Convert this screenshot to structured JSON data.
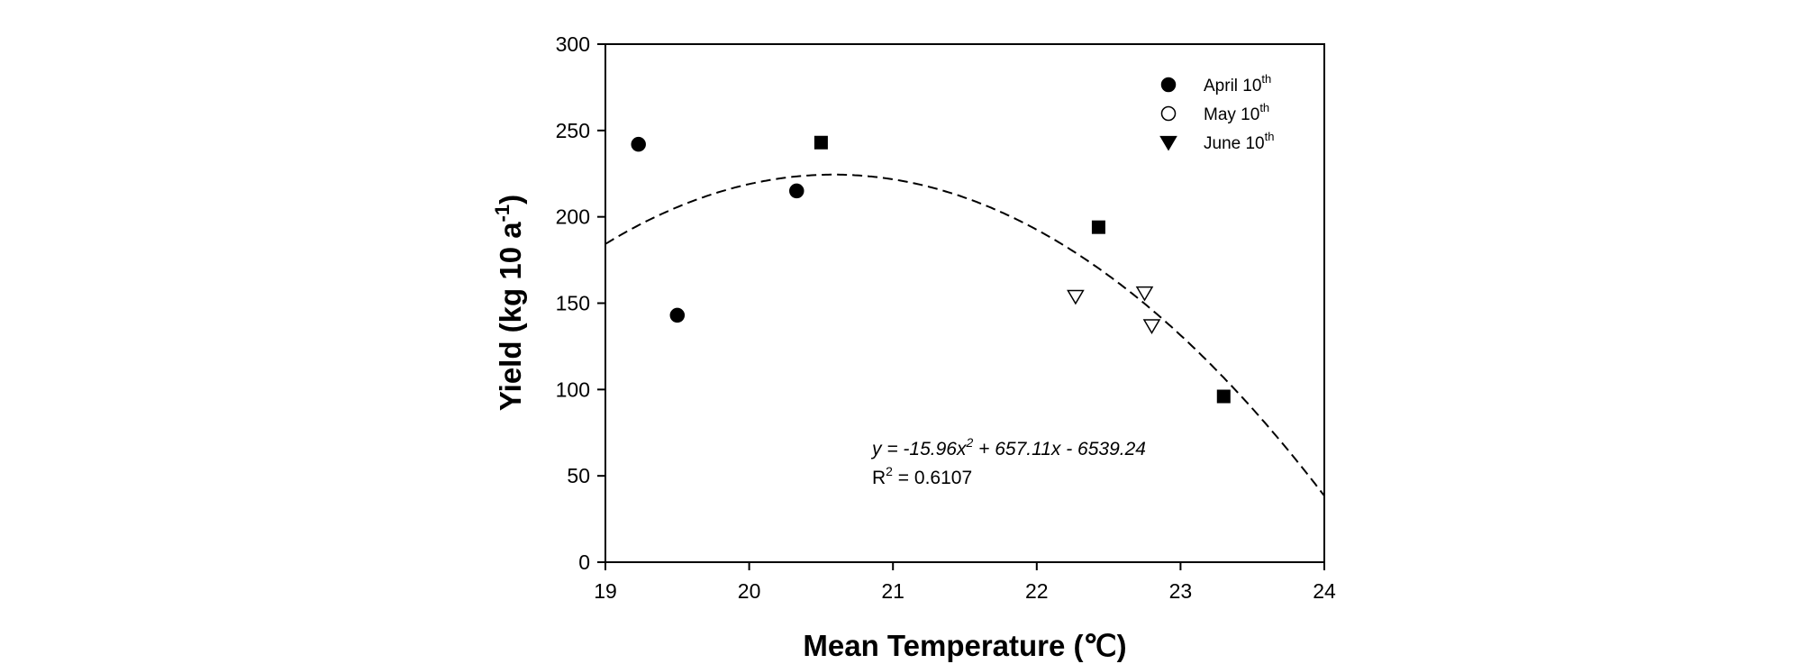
{
  "chart_data": {
    "type": "scatter",
    "title": "",
    "xlabel": "Mean Temperature (℃)",
    "ylabel": {
      "main": "Yield (kg 10 a",
      "sup": "-1",
      "end": ")"
    },
    "xlim": [
      19,
      24
    ],
    "ylim": [
      0,
      300
    ],
    "xticks": [
      "19",
      "20",
      "21",
      "22",
      "23",
      "24"
    ],
    "yticks": [
      "0",
      "50",
      "100",
      "150",
      "200",
      "250",
      "300"
    ],
    "grid": false,
    "legend_position": "top-right",
    "series": [
      {
        "name": "April 10",
        "name_sup": "th",
        "marker": "filled-circle",
        "points": [
          [
            19.23,
            242
          ],
          [
            19.5,
            143
          ],
          [
            20.33,
            215
          ]
        ]
      },
      {
        "name": "May 10",
        "name_sup": "th",
        "marker": "open-circle",
        "points": []
      },
      {
        "name": "June 10",
        "name_sup": "th",
        "marker": "filled-triangle-down",
        "points": []
      }
    ],
    "extra_points": [
      {
        "marker": "filled-square",
        "points": [
          [
            20.5,
            243
          ],
          [
            22.43,
            194
          ],
          [
            23.3,
            96
          ]
        ]
      },
      {
        "marker": "open-triangle-down",
        "points": [
          [
            22.27,
            154
          ],
          [
            22.75,
            156
          ],
          [
            22.8,
            137
          ]
        ]
      }
    ],
    "fit": {
      "type": "quadratic",
      "coefficients": {
        "a": -15.96,
        "b": 657.11,
        "c": -6539.24
      },
      "style": "dashed",
      "equation": {
        "p1": "y = -15.96x",
        "p1_sup": "2",
        "p2": " + 657.11x - 6539.24"
      },
      "r2": {
        "label": "R",
        "label_sup": "2",
        "value": " = 0.6107"
      }
    }
  }
}
